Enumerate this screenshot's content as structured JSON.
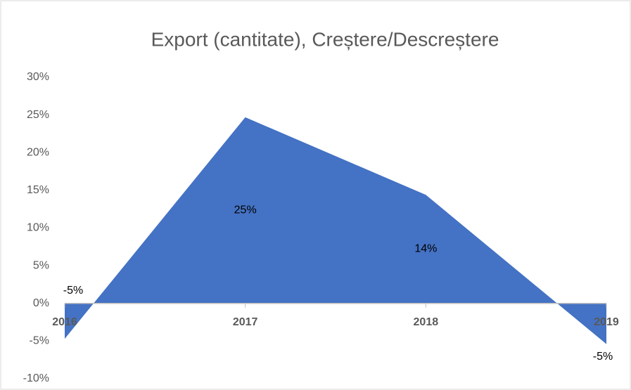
{
  "chart_data": {
    "type": "area",
    "title": "Export (cantitate), Creștere/Descreștere",
    "categories": [
      "2016",
      "2017",
      "2018",
      "2019"
    ],
    "values": [
      -4.7,
      24.7,
      14.4,
      -5.4
    ],
    "value_labels": [
      "-5%",
      "25%",
      "14%",
      "-5%"
    ],
    "color": "#4472c4",
    "ylim": [
      -10,
      30
    ],
    "yticks": [
      {
        "value": -10,
        "label": "-10%"
      },
      {
        "value": -5,
        "label": "-5%"
      },
      {
        "value": 0,
        "label": "0%"
      },
      {
        "value": 5,
        "label": "5%"
      },
      {
        "value": 10,
        "label": "10%"
      },
      {
        "value": 15,
        "label": "15%"
      },
      {
        "value": 20,
        "label": "20%"
      },
      {
        "value": 25,
        "label": "25%"
      },
      {
        "value": 30,
        "label": "30%"
      }
    ],
    "grid": false
  }
}
